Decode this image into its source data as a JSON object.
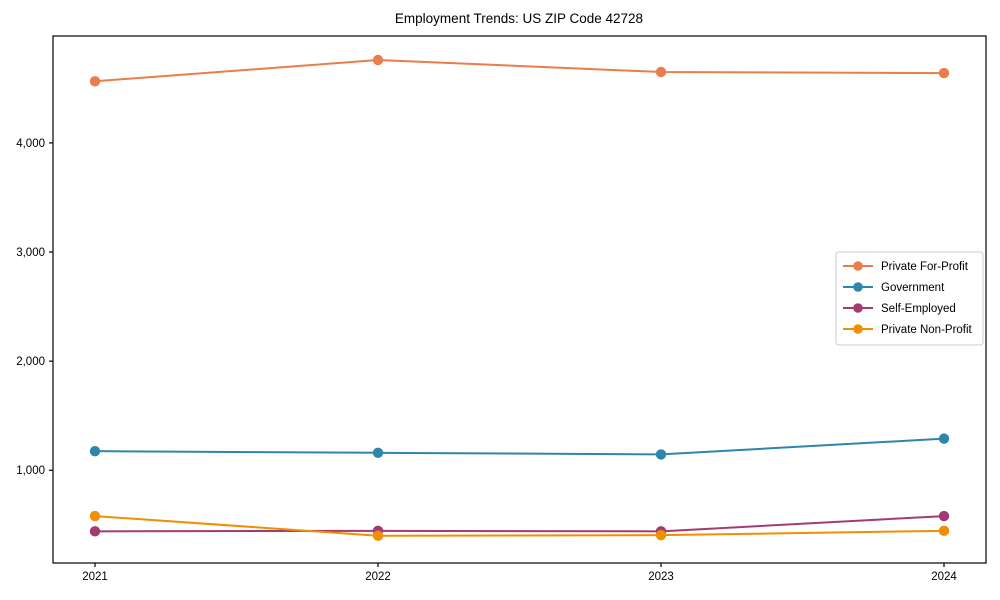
{
  "chart_data": {
    "type": "line",
    "title": "Employment Trends: US ZIP Code 42728",
    "x_tick_labels": [
      "2021",
      "2022",
      "2023",
      "2024"
    ],
    "y_axis": {
      "ticks": [
        1000,
        2000,
        3000,
        4000
      ],
      "tick_labels": [
        "1,000",
        "2,000",
        "3,000",
        "4,000"
      ],
      "lim": [
        150,
        4980
      ]
    },
    "grid": false,
    "legend_position": "center-right",
    "series": [
      {
        "name": "Private For-Profit",
        "color": "#EB7D4B",
        "values": [
          4565,
          4760,
          4650,
          4640
        ]
      },
      {
        "name": "Government",
        "color": "#2E86AB",
        "values": [
          1175,
          1160,
          1145,
          1290
        ]
      },
      {
        "name": "Self-Employed",
        "color": "#A23B72",
        "values": [
          440,
          445,
          440,
          580
        ]
      },
      {
        "name": "Private Non-Profit",
        "color": "#F18F01",
        "values": [
          580,
          400,
          405,
          445
        ]
      }
    ],
    "colors": {
      "axis": "#000000",
      "legend_border": "#cccccc",
      "background": "#ffffff"
    }
  }
}
